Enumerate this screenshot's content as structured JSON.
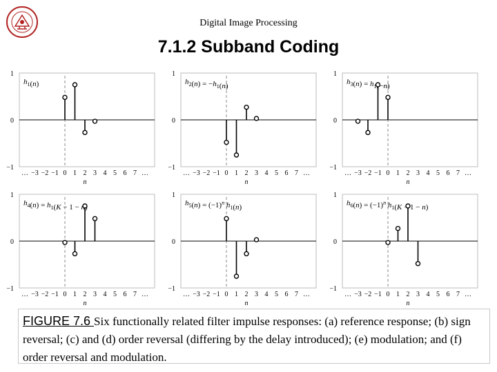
{
  "header": "Digital Image Processing",
  "title": "7.1.2 Subband Coding",
  "logo": {
    "icon": "university-seal-icon",
    "color": "#b22222"
  },
  "chart_data": [
    {
      "type": "stem",
      "label": "h1(n)",
      "label_parts": [
        [
          "h",
          "i"
        ],
        [
          "1",
          "sub"
        ],
        [
          "(",
          "n"
        ],
        [
          "n",
          "i"
        ],
        [
          ")",
          "n"
        ]
      ],
      "xlabel": "n",
      "xticks": [
        "…",
        "−3",
        "−2",
        "−1",
        "0",
        "1",
        "2",
        "3",
        "4",
        "5",
        "6",
        "7",
        "…"
      ],
      "yticks": [
        "1",
        "0",
        "−1"
      ],
      "ylim": [
        -1,
        1
      ],
      "dashed_at": 0,
      "x": [
        0,
        1,
        2,
        3
      ],
      "values": [
        0.48,
        0.75,
        -0.27,
        -0.03
      ]
    },
    {
      "type": "stem",
      "label": "h2(n) = −h1(n)",
      "label_parts": [
        [
          "h",
          "i"
        ],
        [
          "2",
          "sub"
        ],
        [
          "(",
          "n"
        ],
        [
          "n",
          "i"
        ],
        [
          ") = −",
          "n"
        ],
        [
          "h",
          "i"
        ],
        [
          "1",
          "sub"
        ],
        [
          "(",
          "n"
        ],
        [
          "n",
          "i"
        ],
        [
          ")",
          "n"
        ]
      ],
      "xlabel": "n",
      "xticks": [
        "…",
        "−3",
        "−2",
        "−1",
        "0",
        "1",
        "2",
        "3",
        "4",
        "5",
        "6",
        "7",
        "…"
      ],
      "yticks": [
        "1",
        "0",
        "−1"
      ],
      "ylim": [
        -1,
        1
      ],
      "dashed_at": 0,
      "x": [
        0,
        1,
        2,
        3
      ],
      "values": [
        -0.48,
        -0.75,
        0.27,
        0.03
      ]
    },
    {
      "type": "stem",
      "label": "h3(n) = h1(−n)",
      "label_parts": [
        [
          "h",
          "i"
        ],
        [
          "3",
          "sub"
        ],
        [
          "(",
          "n"
        ],
        [
          "n",
          "i"
        ],
        [
          ") = ",
          "n"
        ],
        [
          "h",
          "i"
        ],
        [
          "1",
          "sub"
        ],
        [
          "(−",
          "n"
        ],
        [
          "n",
          "i"
        ],
        [
          ")",
          "n"
        ]
      ],
      "xlabel": "n",
      "xticks": [
        "…",
        "−3",
        "−2",
        "−1",
        "0",
        "1",
        "2",
        "3",
        "4",
        "5",
        "6",
        "7",
        "…"
      ],
      "yticks": [
        "1",
        "0",
        "−1"
      ],
      "ylim": [
        -1,
        1
      ],
      "dashed_at": 0,
      "x": [
        -3,
        -2,
        -1,
        0
      ],
      "values": [
        -0.03,
        -0.27,
        0.75,
        0.48
      ]
    },
    {
      "type": "stem",
      "label": "h4(n) = h1(K − 1 − n)",
      "label_parts": [
        [
          "h",
          "i"
        ],
        [
          "4",
          "sub"
        ],
        [
          "(",
          "n"
        ],
        [
          "n",
          "i"
        ],
        [
          ") = ",
          "n"
        ],
        [
          "h",
          "i"
        ],
        [
          "1",
          "sub"
        ],
        [
          "(",
          "n"
        ],
        [
          "K",
          "i"
        ],
        [
          " − 1 − ",
          "n"
        ],
        [
          "n",
          "i"
        ],
        [
          ")",
          "n"
        ]
      ],
      "xlabel": "n",
      "xticks": [
        "…",
        "−3",
        "−2",
        "−1",
        "0",
        "1",
        "2",
        "3",
        "4",
        "5",
        "6",
        "7",
        "…"
      ],
      "yticks": [
        "1",
        "0",
        "−1"
      ],
      "ylim": [
        -1,
        1
      ],
      "dashed_at": 0,
      "x": [
        0,
        1,
        2,
        3
      ],
      "values": [
        -0.03,
        -0.27,
        0.75,
        0.48
      ]
    },
    {
      "type": "stem",
      "label": "h5(n) = (−1)^n h1(n)",
      "label_parts": [
        [
          "h",
          "i"
        ],
        [
          "5",
          "sub"
        ],
        [
          "(",
          "n"
        ],
        [
          "n",
          "i"
        ],
        [
          ") = (−1)",
          "n"
        ],
        [
          "n",
          "sup"
        ],
        [
          "h",
          "i"
        ],
        [
          "1",
          "sub"
        ],
        [
          "(",
          "n"
        ],
        [
          "n",
          "i"
        ],
        [
          ")",
          "n"
        ]
      ],
      "xlabel": "n",
      "xticks": [
        "…",
        "−3",
        "−2",
        "−1",
        "0",
        "1",
        "2",
        "3",
        "4",
        "5",
        "6",
        "7",
        "…"
      ],
      "yticks": [
        "1",
        "0",
        "−1"
      ],
      "ylim": [
        -1,
        1
      ],
      "dashed_at": 0,
      "x": [
        0,
        1,
        2,
        3
      ],
      "values": [
        0.48,
        -0.75,
        -0.27,
        0.03
      ]
    },
    {
      "type": "stem",
      "label": "h6(n) = (−1)^n h1(K − 1 − n)",
      "label_parts": [
        [
          "h",
          "i"
        ],
        [
          "6",
          "sub"
        ],
        [
          "(",
          "n"
        ],
        [
          "n",
          "i"
        ],
        [
          ") = (−1)",
          "n"
        ],
        [
          "n",
          "sup"
        ],
        [
          "h",
          "i"
        ],
        [
          "1",
          "sub"
        ],
        [
          "(",
          "n"
        ],
        [
          "K",
          "i"
        ],
        [
          " − 1 − ",
          "n"
        ],
        [
          "n",
          "i"
        ],
        [
          ")",
          "n"
        ]
      ],
      "xlabel": "n",
      "xticks": [
        "…",
        "−3",
        "−2",
        "−1",
        "0",
        "1",
        "2",
        "3",
        "4",
        "5",
        "6",
        "7",
        "…"
      ],
      "yticks": [
        "1",
        "0",
        "−1"
      ],
      "ylim": [
        -1,
        1
      ],
      "dashed_at": 0,
      "x": [
        0,
        1,
        2,
        3
      ],
      "values": [
        -0.03,
        0.27,
        0.75,
        -0.48
      ]
    }
  ],
  "caption": {
    "label": "FIGURE 7.6 ",
    "text": "Six functionally related filter impulse responses: (a) reference response; (b) sign reversal; (c) and (d) order reversal (differing by the delay introduced); (e) modulation; and (f) order reversal and modulation."
  }
}
